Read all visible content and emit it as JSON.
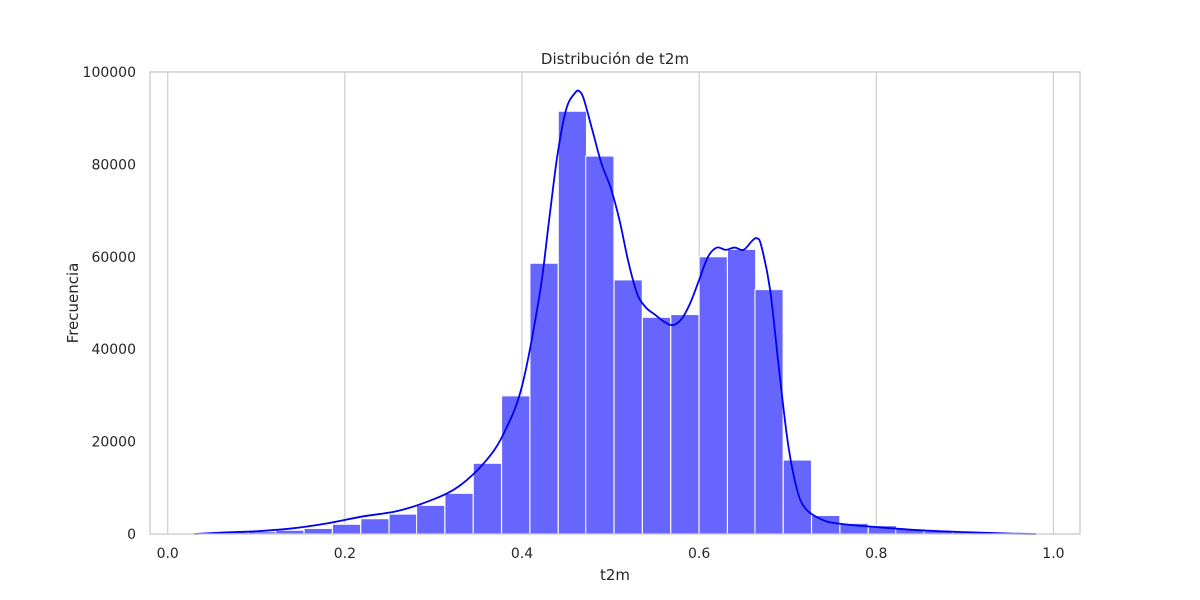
{
  "chart_data": {
    "type": "bar",
    "title": "Distribución de t2m",
    "xlabel": "t2m",
    "ylabel": "Frecuencia",
    "xlim": [
      -0.02,
      1.03
    ],
    "ylim": [
      0,
      100000
    ],
    "xticks": [
      0.0,
      0.2,
      0.4,
      0.6,
      0.8,
      1.0
    ],
    "xtick_labels": [
      "0.0",
      "0.2",
      "0.4",
      "0.6",
      "0.8",
      "1.0"
    ],
    "yticks": [
      0,
      20000,
      40000,
      60000,
      80000,
      100000
    ],
    "ytick_labels": [
      "0",
      "20000",
      "40000",
      "60000",
      "80000",
      "100000"
    ],
    "grid": "vertical",
    "bar_color": "#6666ff",
    "bar_edge_color": "#ffffff",
    "kde_color": "#0000ee",
    "frame_color": "#cccccc",
    "bin_width": 0.0318,
    "bin_edges_start": 0.027,
    "bins": [
      {
        "x0": 0.027,
        "count": 200
      },
      {
        "x0": 0.059,
        "count": 400
      },
      {
        "x0": 0.091,
        "count": 500
      },
      {
        "x0": 0.122,
        "count": 800
      },
      {
        "x0": 0.154,
        "count": 1200
      },
      {
        "x0": 0.186,
        "count": 2100
      },
      {
        "x0": 0.218,
        "count": 3300
      },
      {
        "x0": 0.25,
        "count": 4300
      },
      {
        "x0": 0.281,
        "count": 6200
      },
      {
        "x0": 0.313,
        "count": 8800
      },
      {
        "x0": 0.345,
        "count": 15300
      },
      {
        "x0": 0.377,
        "count": 29900
      },
      {
        "x0": 0.409,
        "count": 58600
      },
      {
        "x0": 0.441,
        "count": 91500
      },
      {
        "x0": 0.472,
        "count": 81800
      },
      {
        "x0": 0.504,
        "count": 55000
      },
      {
        "x0": 0.536,
        "count": 46900
      },
      {
        "x0": 0.568,
        "count": 47500
      },
      {
        "x0": 0.6,
        "count": 60000
      },
      {
        "x0": 0.632,
        "count": 61600
      },
      {
        "x0": 0.663,
        "count": 52900
      },
      {
        "x0": 0.695,
        "count": 16000
      },
      {
        "x0": 0.727,
        "count": 4000
      },
      {
        "x0": 0.759,
        "count": 2300
      },
      {
        "x0": 0.791,
        "count": 1800
      },
      {
        "x0": 0.822,
        "count": 1100
      },
      {
        "x0": 0.854,
        "count": 600
      },
      {
        "x0": 0.886,
        "count": 400
      },
      {
        "x0": 0.918,
        "count": 300
      },
      {
        "x0": 0.95,
        "count": 200
      }
    ],
    "kde": {
      "x": [
        0.03,
        0.06,
        0.1,
        0.14,
        0.18,
        0.22,
        0.26,
        0.3,
        0.33,
        0.36,
        0.38,
        0.4,
        0.42,
        0.43,
        0.44,
        0.45,
        0.46,
        0.465,
        0.47,
        0.48,
        0.49,
        0.5,
        0.51,
        0.52,
        0.53,
        0.54,
        0.55,
        0.56,
        0.57,
        0.58,
        0.59,
        0.6,
        0.61,
        0.62,
        0.63,
        0.64,
        0.65,
        0.66,
        0.665,
        0.67,
        0.68,
        0.69,
        0.7,
        0.71,
        0.72,
        0.74,
        0.76,
        0.8,
        0.85,
        0.9,
        0.95,
        0.98
      ],
      "y": [
        0,
        300,
        600,
        1200,
        2300,
        3800,
        5000,
        7500,
        10500,
        16000,
        22000,
        32000,
        52000,
        67000,
        82000,
        92000,
        95500,
        95800,
        94000,
        87000,
        80000,
        75000,
        68000,
        59000,
        52000,
        49000,
        47500,
        46000,
        45200,
        46500,
        50000,
        55000,
        60000,
        62000,
        61500,
        62000,
        61500,
        63500,
        64000,
        62500,
        53000,
        36000,
        20000,
        10000,
        5500,
        3000,
        2200,
        1500,
        800,
        400,
        100,
        0
      ]
    }
  }
}
